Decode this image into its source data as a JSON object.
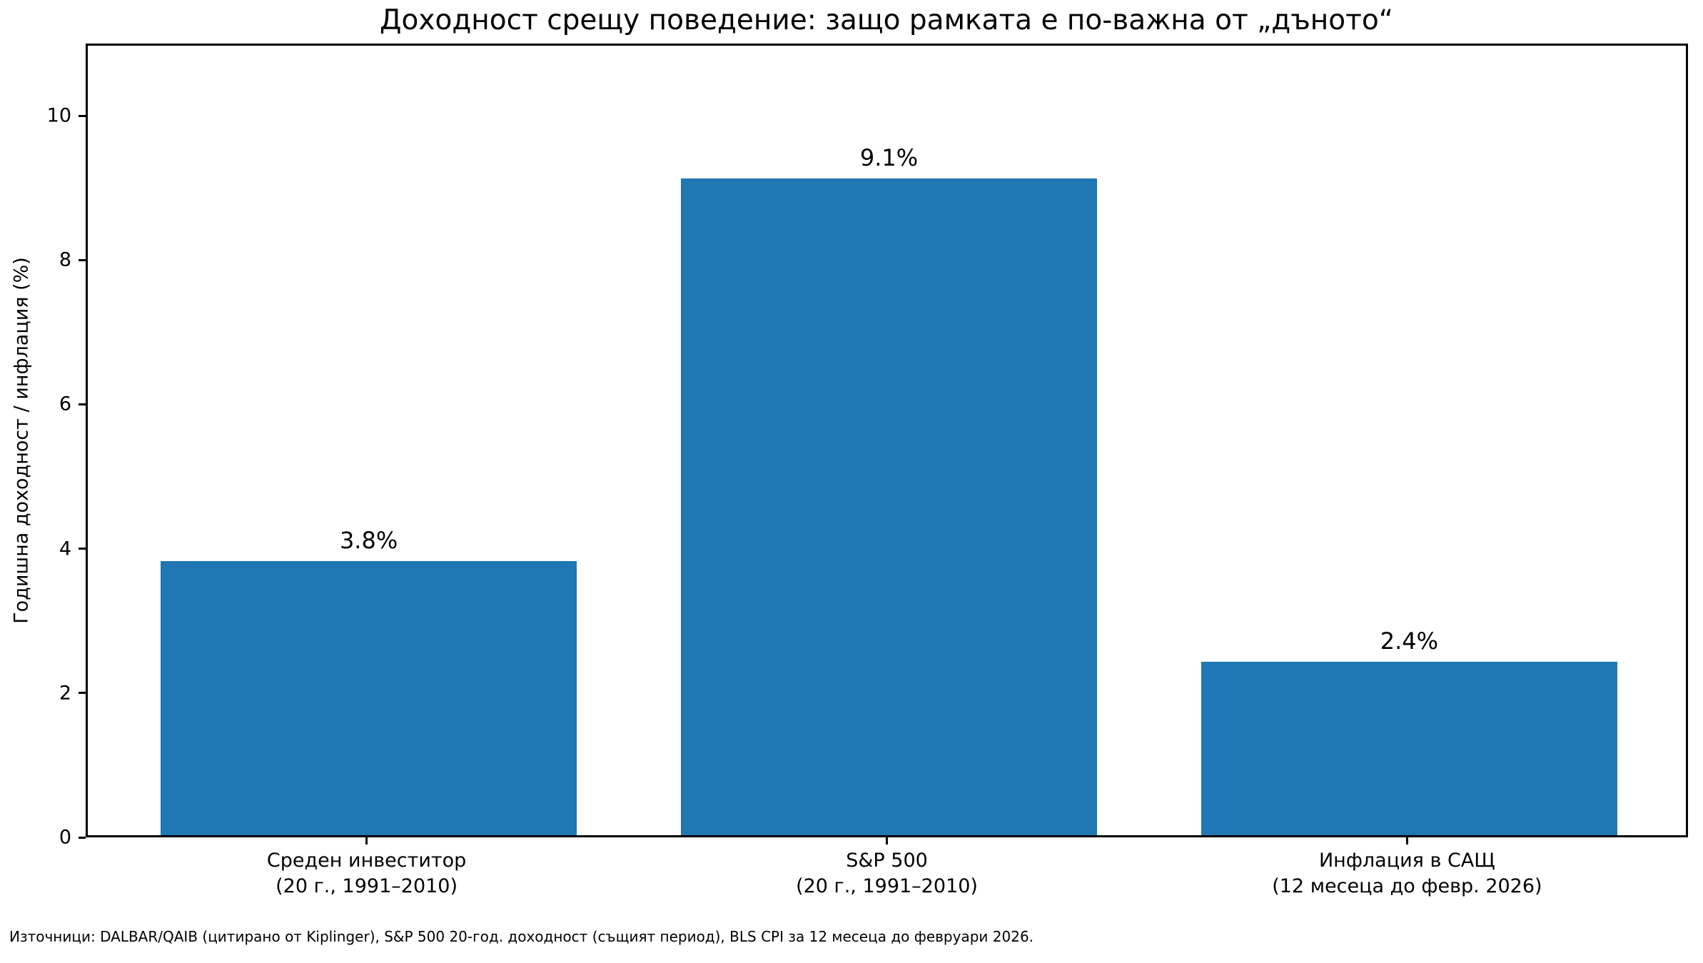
{
  "figure": {
    "background": "#ffffff",
    "text_color": "#000000"
  },
  "chart_data": {
    "type": "bar",
    "title": "Доходност срещу поведение: защо рамката е по-важна от „дъното“",
    "ylabel": "Годишна доходност / инфлация (%)",
    "xlabel": "",
    "categories": [
      "Среден инвеститор\n(20 г., 1991–2010)",
      "S&P 500\n(20 г., 1991–2010)",
      "Инфлация в САЩ\n(12 месеца до февр. 2026)"
    ],
    "values": [
      3.8,
      9.1,
      2.4
    ],
    "value_labels": [
      "3.8%",
      "9.1%",
      "2.4%"
    ],
    "bar_color": "#1f77b4",
    "ylim": [
      0,
      11
    ],
    "yticks": [
      0,
      2,
      4,
      6,
      8,
      10
    ],
    "bar_width_fraction": 0.8,
    "grid": false,
    "legend": null,
    "footnote": "Източници: DALBAR/QAIB (цитирано от Kiplinger), S&P 500 20-год. доходност (същият период), BLS CPI за 12 месеца до февруари 2026."
  }
}
